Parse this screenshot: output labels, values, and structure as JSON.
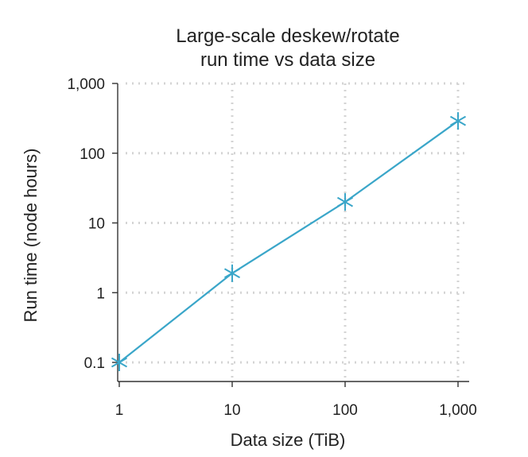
{
  "chart_data": {
    "type": "line",
    "title": [
      "Large-scale deskew/rotate",
      "run time vs data size"
    ],
    "xlabel": "Data size (TiB)",
    "ylabel": "Run time (node hours)",
    "x_scale": "log",
    "y_scale": "log",
    "xlim": [
      1,
      1000
    ],
    "ylim": [
      0.1,
      1000
    ],
    "x_ticks": [
      1,
      10,
      100,
      1000
    ],
    "x_tick_labels": [
      "1",
      "10",
      "100",
      "1,000"
    ],
    "y_ticks": [
      0.1,
      1,
      10,
      100,
      1000
    ],
    "y_tick_labels": [
      "0.1",
      "1",
      "10",
      "100",
      "1,000"
    ],
    "grid": true,
    "series": [
      {
        "color": "#3aa6c9",
        "marker": "asterisk",
        "x": [
          1,
          10,
          100,
          1000
        ],
        "y": [
          0.1,
          1.9,
          20,
          290
        ]
      }
    ]
  }
}
